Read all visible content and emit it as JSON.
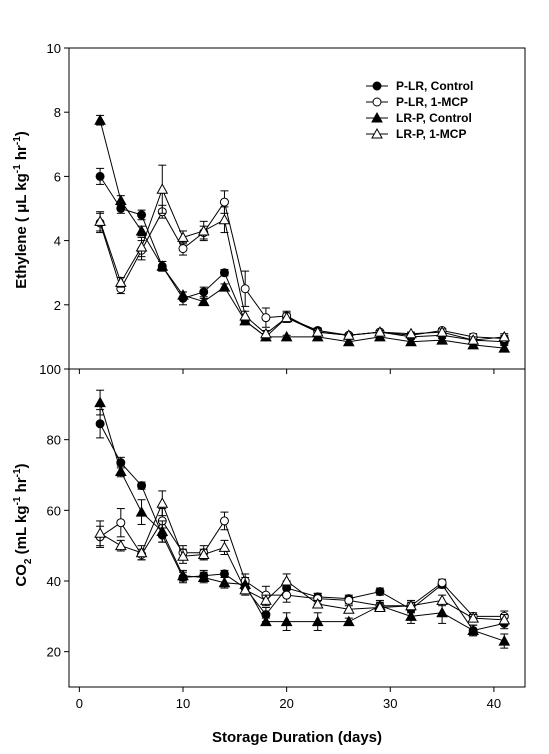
{
  "figure": {
    "xlabel": "Storage Duration (days)",
    "panels": [
      {
        "id": "ethylene",
        "ylabel_main": "Ethylene ( μL kg",
        "ylabel_sup1": "-1",
        "ylabel_mid": " hr",
        "ylabel_sup2": "-1",
        "ylabel_end": ")",
        "ytick_labels": [
          "2",
          "4",
          "6",
          "8",
          "10"
        ],
        "xtick_labels": []
      },
      {
        "id": "co2",
        "ylabel_main": "CO",
        "ylabel_sub": "2",
        "ylabel_mid": " (mL kg",
        "ylabel_sup1": "-1",
        "ylabel_mid2": " hr",
        "ylabel_sup2": "-1",
        "ylabel_end": ")",
        "ytick_labels": [
          "20",
          "40",
          "60",
          "80",
          "100"
        ],
        "xtick_labels": [
          "0",
          "10",
          "20",
          "30",
          "40"
        ]
      }
    ],
    "legend": [
      {
        "name": "P-LR, Control",
        "marker": "filled-circle"
      },
      {
        "name": "P-LR, 1-MCP",
        "marker": "open-circle"
      },
      {
        "name": "LR-P, Control",
        "marker": "filled-triangle"
      },
      {
        "name": "LR-P, 1-MCP",
        "marker": "open-triangle"
      }
    ]
  },
  "chart_data": [
    {
      "type": "line",
      "panel": "ethylene",
      "xlim": [
        -1,
        43
      ],
      "ylim": [
        0,
        10
      ],
      "xlabel": "",
      "ylabel": "Ethylene ( μL kg-1 hr-1)",
      "legend_placement": "top-right",
      "x": [
        2,
        4,
        6,
        8,
        10,
        12,
        14,
        16,
        18,
        20,
        23,
        26,
        29,
        32,
        35,
        38,
        41
      ],
      "series": [
        {
          "name": "P-LR, Control",
          "marker": "filled-circle",
          "values": [
            6.0,
            5.0,
            4.8,
            3.2,
            2.2,
            2.4,
            3.0,
            1.5,
            1.0,
            1.6,
            1.2,
            1.05,
            1.15,
            1.0,
            1.05,
            0.9,
            0.85
          ],
          "errors": [
            0.25,
            0.15,
            0.15,
            0.15,
            0.2,
            0.15,
            0.1,
            0.1,
            0.1,
            0.1,
            0.08,
            0.05,
            0.05,
            0.05,
            0.1,
            0.08,
            0.08
          ]
        },
        {
          "name": "P-LR, 1-MCP",
          "marker": "open-circle",
          "values": [
            4.55,
            2.5,
            3.7,
            4.9,
            3.75,
            4.25,
            5.2,
            2.5,
            1.6,
            1.65,
            1.15,
            1.05,
            1.15,
            1.05,
            1.2,
            1.0,
            0.95
          ],
          "errors": [
            0.3,
            0.15,
            0.3,
            0.2,
            0.2,
            0.2,
            0.35,
            0.55,
            0.3,
            0.15,
            0.1,
            0.05,
            0.05,
            0.05,
            0.05,
            0.1,
            0.1
          ]
        },
        {
          "name": "LR-P, Control",
          "marker": "filled-triangle",
          "values": [
            7.75,
            5.25,
            4.3,
            3.2,
            2.3,
            2.1,
            2.55,
            1.5,
            1.0,
            1.0,
            1.0,
            0.85,
            1.0,
            0.85,
            0.9,
            0.75,
            0.65
          ],
          "errors": [
            0.15,
            0.15,
            0.15,
            0.15,
            0.1,
            0.1,
            0.1,
            0.1,
            0.1,
            0.05,
            0.05,
            0.08,
            0.08,
            0.08,
            0.1,
            0.08,
            0.08
          ]
        },
        {
          "name": "LR-P, 1-MCP",
          "marker": "open-triangle",
          "values": [
            4.6,
            2.7,
            3.8,
            5.6,
            4.1,
            4.3,
            4.65,
            1.65,
            1.1,
            1.6,
            1.15,
            1.05,
            1.15,
            1.1,
            1.15,
            0.9,
            1.0
          ],
          "errors": [
            0.3,
            0.15,
            0.3,
            0.75,
            0.2,
            0.3,
            0.4,
            0.15,
            0.1,
            0.15,
            0.05,
            0.05,
            0.05,
            0.05,
            0.1,
            0.1,
            0.1
          ]
        }
      ]
    },
    {
      "type": "line",
      "panel": "co2",
      "xlim": [
        -1,
        43
      ],
      "ylim": [
        10,
        100
      ],
      "xlabel": "Storage Duration (days)",
      "ylabel": "CO2 (mL kg-1 hr-1)",
      "x": [
        2,
        4,
        6,
        8,
        10,
        12,
        14,
        16,
        18,
        20,
        23,
        26,
        29,
        32,
        35,
        38,
        41
      ],
      "series": [
        {
          "name": "P-LR, Control",
          "marker": "filled-circle",
          "values": [
            84.5,
            73.5,
            67.0,
            53.0,
            41.0,
            41.5,
            42.0,
            38.0,
            30.5,
            38.0,
            35.5,
            35.0,
            37.0,
            32.0,
            39.0,
            26.0,
            28.0
          ],
          "errors": [
            4.0,
            1.5,
            1.0,
            2.0,
            1.5,
            1.5,
            1.0,
            1.5,
            2.0,
            2.0,
            1.0,
            1.0,
            1.0,
            1.0,
            1.0,
            1.5,
            1.5
          ]
        },
        {
          "name": "P-LR, 1-MCP",
          "marker": "open-circle",
          "values": [
            52.5,
            56.5,
            47.5,
            57.0,
            48.0,
            48.0,
            57.0,
            40.0,
            36.0,
            36.0,
            35.0,
            34.5,
            33.0,
            33.0,
            39.5,
            30.0,
            30.0
          ],
          "errors": [
            3.0,
            4.0,
            1.5,
            3.5,
            2.0,
            2.0,
            2.5,
            2.0,
            2.5,
            2.0,
            1.5,
            1.0,
            1.0,
            1.5,
            1.0,
            1.0,
            1.5
          ]
        },
        {
          "name": "LR-P, Control",
          "marker": "filled-triangle",
          "values": [
            90.5,
            71.0,
            59.5,
            54.0,
            41.5,
            41.0,
            39.5,
            39.0,
            28.5,
            28.5,
            28.5,
            28.5,
            33.0,
            30.0,
            31.0,
            26.0,
            23.0
          ],
          "errors": [
            3.5,
            1.5,
            3.5,
            3.0,
            1.5,
            1.5,
            1.5,
            2.0,
            1.0,
            2.5,
            2.5,
            1.0,
            1.5,
            2.0,
            3.0,
            1.5,
            2.0
          ]
        },
        {
          "name": "LR-P, 1-MCP",
          "marker": "open-triangle",
          "values": [
            53.5,
            50.0,
            48.0,
            62.0,
            47.0,
            47.5,
            49.5,
            37.5,
            34.5,
            40.0,
            33.5,
            32.0,
            32.5,
            33.0,
            34.5,
            29.5,
            29.0
          ],
          "errors": [
            3.5,
            1.5,
            2.0,
            3.5,
            2.0,
            1.5,
            2.0,
            1.5,
            1.5,
            2.0,
            1.0,
            1.0,
            1.0,
            1.0,
            1.5,
            1.0,
            1.5
          ]
        }
      ]
    }
  ]
}
